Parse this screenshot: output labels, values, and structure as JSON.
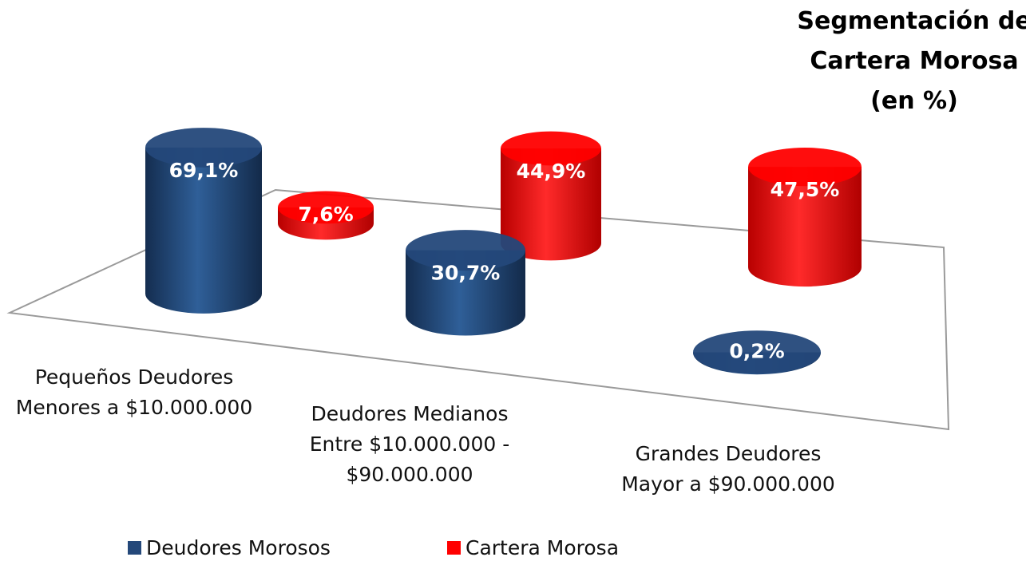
{
  "chart_data": {
    "type": "cylinder",
    "title": "Segmentación de\nCartera Morosa\n(en %)",
    "categories": [
      "Pequeños Deudores\nMenores a $10.000.000",
      "Deudores Medianos\nEntre $10.000.000 -\n$90.000.000",
      "Grandes Deudores\nMayor a $90.000.000"
    ],
    "series": [
      {
        "name": "Deudores Morosos",
        "color": "#24487a",
        "values": [
          69.1,
          30.7,
          0.2
        ],
        "value_labels": [
          "69,1%",
          "30,7%",
          "0,2%"
        ]
      },
      {
        "name": "Cartera Morosa",
        "color": "#ff0000",
        "values": [
          7.6,
          44.9,
          47.5
        ],
        "value_labels": [
          "7,6%",
          "44,9%",
          "47,5%"
        ]
      }
    ]
  }
}
